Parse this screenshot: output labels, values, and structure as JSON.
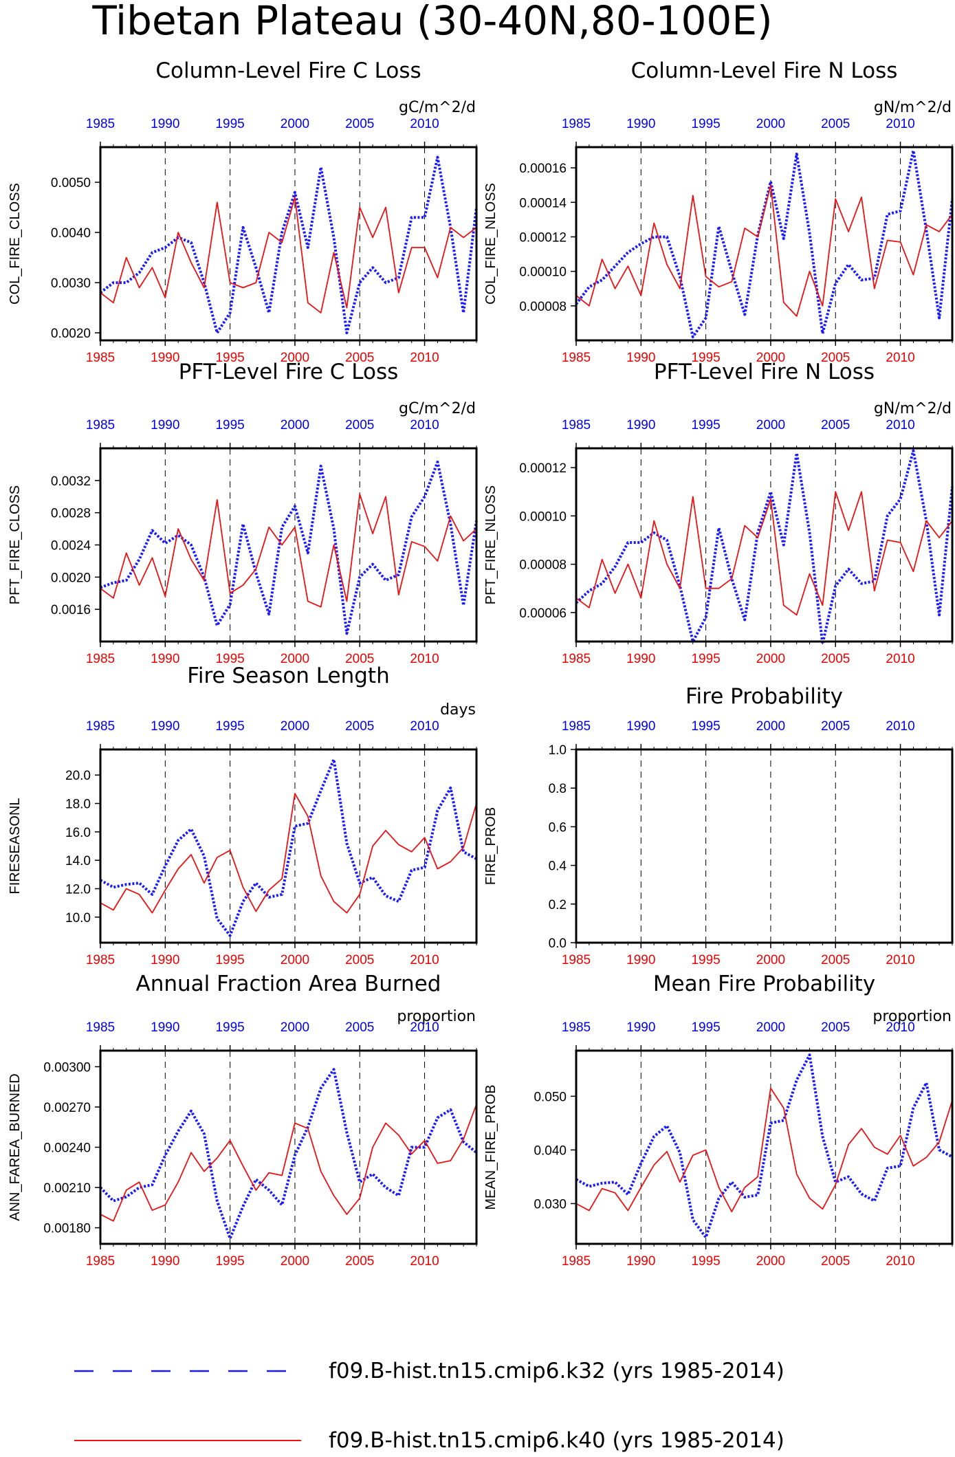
{
  "page_title": "Tibetan Plateau (30-40N,80-100E)",
  "years": [
    1985,
    1986,
    1987,
    1988,
    1989,
    1990,
    1991,
    1992,
    1993,
    1994,
    1995,
    1996,
    1997,
    1998,
    1999,
    2000,
    2001,
    2002,
    2003,
    2004,
    2005,
    2006,
    2007,
    2008,
    2009,
    2010,
    2011,
    2012,
    2013,
    2014
  ],
  "x_ticks": [
    "1985",
    "1990",
    "1995",
    "2000",
    "2005",
    "2010"
  ],
  "colors": {
    "k32": "#1a1aff",
    "k40": "#ee1111",
    "top_ticks": "#0000ee",
    "bottom_ticks": "#ee0000"
  },
  "legend": [
    {
      "label": "f09.B-hist.tn15.cmip6.k32 (yrs 1985-2014)",
      "style": "dotted",
      "color": "#1a1aff"
    },
    {
      "label": "f09.B-hist.tn15.cmip6.k40 (yrs 1985-2014)",
      "style": "solid",
      "color": "#ee1111"
    }
  ],
  "chart_data": [
    {
      "type": "line",
      "title": "Column-Level Fire C Loss",
      "units": "gC/m^2/d",
      "ylabel": "COL_FIRE_CLOSS",
      "ylim": [
        0.00185,
        0.0057
      ],
      "yticks": [
        "0.0020",
        "0.0030",
        "0.0040",
        "0.0050"
      ],
      "series": [
        {
          "name": "f09.B-hist.tn15.cmip6.k32",
          "values": [
            0.0028,
            0.003,
            0.003,
            0.0032,
            0.0036,
            0.0037,
            0.0039,
            0.0038,
            0.003,
            0.002,
            0.0024,
            0.0041,
            0.0033,
            0.0024,
            0.004,
            0.0048,
            0.0037,
            0.0053,
            0.0039,
            0.002,
            0.003,
            0.0033,
            0.003,
            0.0031,
            0.0043,
            0.0043,
            0.0055,
            0.0041,
            0.0024,
            0.0045
          ]
        },
        {
          "name": "f09.B-hist.tn15.cmip6.k40",
          "values": [
            0.0028,
            0.0026,
            0.0035,
            0.0029,
            0.0033,
            0.0027,
            0.004,
            0.0034,
            0.0029,
            0.0046,
            0.003,
            0.0029,
            0.003,
            0.004,
            0.0038,
            0.0047,
            0.0026,
            0.0024,
            0.0036,
            0.0025,
            0.0045,
            0.0039,
            0.0045,
            0.0028,
            0.0037,
            0.0037,
            0.0031,
            0.0041,
            0.0039,
            0.0041
          ]
        }
      ]
    },
    {
      "type": "line",
      "title": "Column-Level Fire N Loss",
      "units": "gN/m^2/d",
      "ylabel": "COL_FIRE_NLOSS",
      "ylim": [
        6e-05,
        0.000172
      ],
      "yticks": [
        "0.00008",
        "0.00010",
        "0.00012",
        "0.00014",
        "0.00016"
      ],
      "series": [
        {
          "name": "f09.B-hist.tn15.cmip6.k32",
          "values": [
            8.1e-05,
            9.1e-05,
            9.5e-05,
            0.000103,
            0.000111,
            0.000116,
            0.00012,
            0.00012,
            9.7e-05,
            6.2e-05,
            7.3e-05,
            0.000126,
            0.0001,
            7.5e-05,
            0.000121,
            0.000152,
            0.000119,
            0.000168,
            0.000122,
            6.4e-05,
            9.3e-05,
            0.000104,
            9.5e-05,
            9.6e-05,
            0.000133,
            0.000135,
            0.00017,
            0.000124,
            7.3e-05,
            0.000142
          ]
        },
        {
          "name": "f09.B-hist.tn15.cmip6.k40",
          "values": [
            8.6e-05,
            8e-05,
            0.000107,
            9e-05,
            0.000103,
            8.6e-05,
            0.000128,
            0.000104,
            9e-05,
            0.000144,
            9.7e-05,
            9.1e-05,
            9.4e-05,
            0.000125,
            0.00012,
            0.00015,
            8.2e-05,
            7.4e-05,
            0.0001,
            8e-05,
            0.000142,
            0.000123,
            0.000143,
            9e-05,
            0.000118,
            0.000117,
            9.8e-05,
            0.000127,
            0.000123,
            0.000133
          ]
        }
      ]
    },
    {
      "type": "line",
      "title": "PFT-Level Fire C Loss",
      "units": "gC/m^2/d",
      "ylabel": "PFT_FIRE_CLOSS",
      "ylim": [
        0.0012,
        0.0036
      ],
      "yticks": [
        "0.0016",
        "0.0020",
        "0.0024",
        "0.0028",
        "0.0032"
      ],
      "series": [
        {
          "name": "f09.B-hist.tn15.cmip6.k32",
          "values": [
            0.00187,
            0.00193,
            0.00196,
            0.00222,
            0.00258,
            0.00242,
            0.00252,
            0.0024,
            0.002,
            0.0014,
            0.00166,
            0.00266,
            0.00205,
            0.00154,
            0.00262,
            0.00288,
            0.0023,
            0.00338,
            0.0026,
            0.0013,
            0.002,
            0.00216,
            0.00196,
            0.00203,
            0.00275,
            0.003,
            0.00343,
            0.00266,
            0.00165,
            0.0027
          ]
        },
        {
          "name": "f09.B-hist.tn15.cmip6.k40",
          "values": [
            0.00186,
            0.00174,
            0.0023,
            0.0019,
            0.00224,
            0.00176,
            0.0026,
            0.00222,
            0.00196,
            0.00296,
            0.0018,
            0.0019,
            0.0021,
            0.00262,
            0.0024,
            0.00262,
            0.0017,
            0.00163,
            0.0024,
            0.0017,
            0.00303,
            0.00254,
            0.003,
            0.00178,
            0.00244,
            0.00238,
            0.0022,
            0.00276,
            0.00245,
            0.0026
          ]
        }
      ]
    },
    {
      "type": "line",
      "title": "PFT-Level Fire N Loss",
      "units": "gN/m^2/d",
      "ylabel": "PFT_FIRE_NLOSS",
      "ylim": [
        4.8e-05,
        0.000128
      ],
      "yticks": [
        "0.00006",
        "0.00008",
        "0.00010",
        "0.00012"
      ],
      "series": [
        {
          "name": "f09.B-hist.tn15.cmip6.k32",
          "values": [
            6.4e-05,
            6.9e-05,
            7.2e-05,
            7.9e-05,
            8.9e-05,
            8.9e-05,
            9.3e-05,
            9e-05,
            7.1e-05,
            4.8e-05,
            5.8e-05,
            9.5e-05,
            7.4e-05,
            5.7e-05,
            9.3e-05,
            0.00011,
            8.8e-05,
            0.000126,
            9.3e-05,
            4.7e-05,
            7.1e-05,
            7.8e-05,
            7.2e-05,
            7.3e-05,
            0.0001,
            0.000107,
            0.000127,
            9.8e-05,
            5.9e-05,
            0.000112
          ]
        },
        {
          "name": "f09.B-hist.tn15.cmip6.k40",
          "values": [
            6.6e-05,
            6.2e-05,
            8.2e-05,
            6.8e-05,
            8e-05,
            6.6e-05,
            9.8e-05,
            8e-05,
            7e-05,
            0.000108,
            7e-05,
            7e-05,
            7.4e-05,
            9.6e-05,
            9.1e-05,
            0.000107,
            6.3e-05,
            5.9e-05,
            7.6e-05,
            6.3e-05,
            0.00011,
            9.4e-05,
            0.00011,
            6.9e-05,
            9e-05,
            8.9e-05,
            7.7e-05,
            9.8e-05,
            9.1e-05,
            9.8e-05
          ]
        }
      ]
    },
    {
      "type": "line",
      "title": "Fire Season Length",
      "units": "days",
      "ylabel": "FIRESEASONL",
      "ylim": [
        8.2,
        21.8
      ],
      "yticks": [
        "10.0",
        "12.0",
        "14.0",
        "16.0",
        "18.0",
        "20.0"
      ],
      "series": [
        {
          "name": "f09.B-hist.tn15.cmip6.k32",
          "values": [
            12.6,
            12.1,
            12.3,
            12.4,
            11.6,
            13.6,
            15.4,
            16.2,
            14.3,
            9.9,
            8.7,
            11.1,
            12.4,
            11.4,
            11.6,
            16.4,
            16.6,
            18.9,
            21.1,
            15.2,
            12.4,
            12.8,
            11.5,
            11.1,
            13.3,
            13.5,
            17.5,
            19.1,
            14.6,
            14.1
          ]
        },
        {
          "name": "f09.B-hist.tn15.cmip6.k40",
          "values": [
            11.0,
            10.5,
            12.0,
            11.6,
            10.3,
            11.9,
            13.4,
            14.4,
            12.4,
            14.2,
            14.7,
            12.1,
            10.4,
            11.9,
            12.7,
            18.7,
            17.1,
            12.9,
            11.1,
            10.3,
            11.6,
            15.0,
            16.1,
            15.1,
            14.6,
            15.6,
            13.4,
            13.9,
            14.9,
            18.0
          ]
        }
      ]
    },
    {
      "type": "line",
      "title": "Fire Probability",
      "units": "",
      "ylabel": "FIRE_PROB",
      "ylim": [
        0.0,
        1.0
      ],
      "yticks": [
        "0.0",
        "0.2",
        "0.4",
        "0.6",
        "0.8",
        "1.0"
      ],
      "series": []
    },
    {
      "type": "line",
      "title": "Annual Fraction Area Burned",
      "units": "proportion",
      "ylabel": "ANN_FAREA_BURNED",
      "ylim": [
        0.00168,
        0.00312
      ],
      "yticks": [
        "0.00180",
        "0.00210",
        "0.00240",
        "0.00270",
        "0.00300"
      ],
      "series": [
        {
          "name": "f09.B-hist.tn15.cmip6.k32",
          "values": [
            0.0021,
            0.002,
            0.00203,
            0.0021,
            0.00212,
            0.00234,
            0.00252,
            0.00267,
            0.0025,
            0.002,
            0.00172,
            0.00196,
            0.00216,
            0.00208,
            0.00197,
            0.00234,
            0.00255,
            0.00284,
            0.00298,
            0.00251,
            0.00214,
            0.0022,
            0.0021,
            0.00204,
            0.0024,
            0.0024,
            0.00262,
            0.00268,
            0.00244,
            0.00236
          ]
        },
        {
          "name": "f09.B-hist.tn15.cmip6.k40",
          "values": [
            0.0019,
            0.00185,
            0.00208,
            0.00214,
            0.00193,
            0.00197,
            0.00214,
            0.00236,
            0.00222,
            0.00232,
            0.00245,
            0.00226,
            0.00208,
            0.00221,
            0.00219,
            0.00258,
            0.00254,
            0.00222,
            0.00204,
            0.0019,
            0.00202,
            0.0024,
            0.00258,
            0.00249,
            0.00235,
            0.00245,
            0.00228,
            0.0023,
            0.00246,
            0.00272
          ]
        }
      ]
    },
    {
      "type": "line",
      "title": "Mean Fire Probability",
      "units": "proportion",
      "ylabel": "MEAN_FIRE_PROB",
      "ylim": [
        0.0225,
        0.0585
      ],
      "yticks": [
        "0.030",
        "0.040",
        "0.050"
      ],
      "series": [
        {
          "name": "f09.B-hist.tn15.cmip6.k32",
          "values": [
            0.0345,
            0.0332,
            0.0338,
            0.034,
            0.0317,
            0.0375,
            0.0425,
            0.0445,
            0.0395,
            0.027,
            0.0237,
            0.031,
            0.034,
            0.0312,
            0.0316,
            0.045,
            0.0455,
            0.053,
            0.0577,
            0.0425,
            0.034,
            0.035,
            0.0318,
            0.0305,
            0.0366,
            0.037,
            0.0478,
            0.0525,
            0.04,
            0.0387
          ]
        },
        {
          "name": "f09.B-hist.tn15.cmip6.k40",
          "values": [
            0.03,
            0.0287,
            0.0328,
            0.032,
            0.0287,
            0.033,
            0.0372,
            0.0397,
            0.034,
            0.039,
            0.04,
            0.033,
            0.0285,
            0.033,
            0.035,
            0.0515,
            0.0478,
            0.0355,
            0.031,
            0.029,
            0.0335,
            0.041,
            0.044,
            0.0405,
            0.0392,
            0.0427,
            0.037,
            0.0386,
            0.0415,
            0.0492
          ]
        }
      ]
    }
  ]
}
